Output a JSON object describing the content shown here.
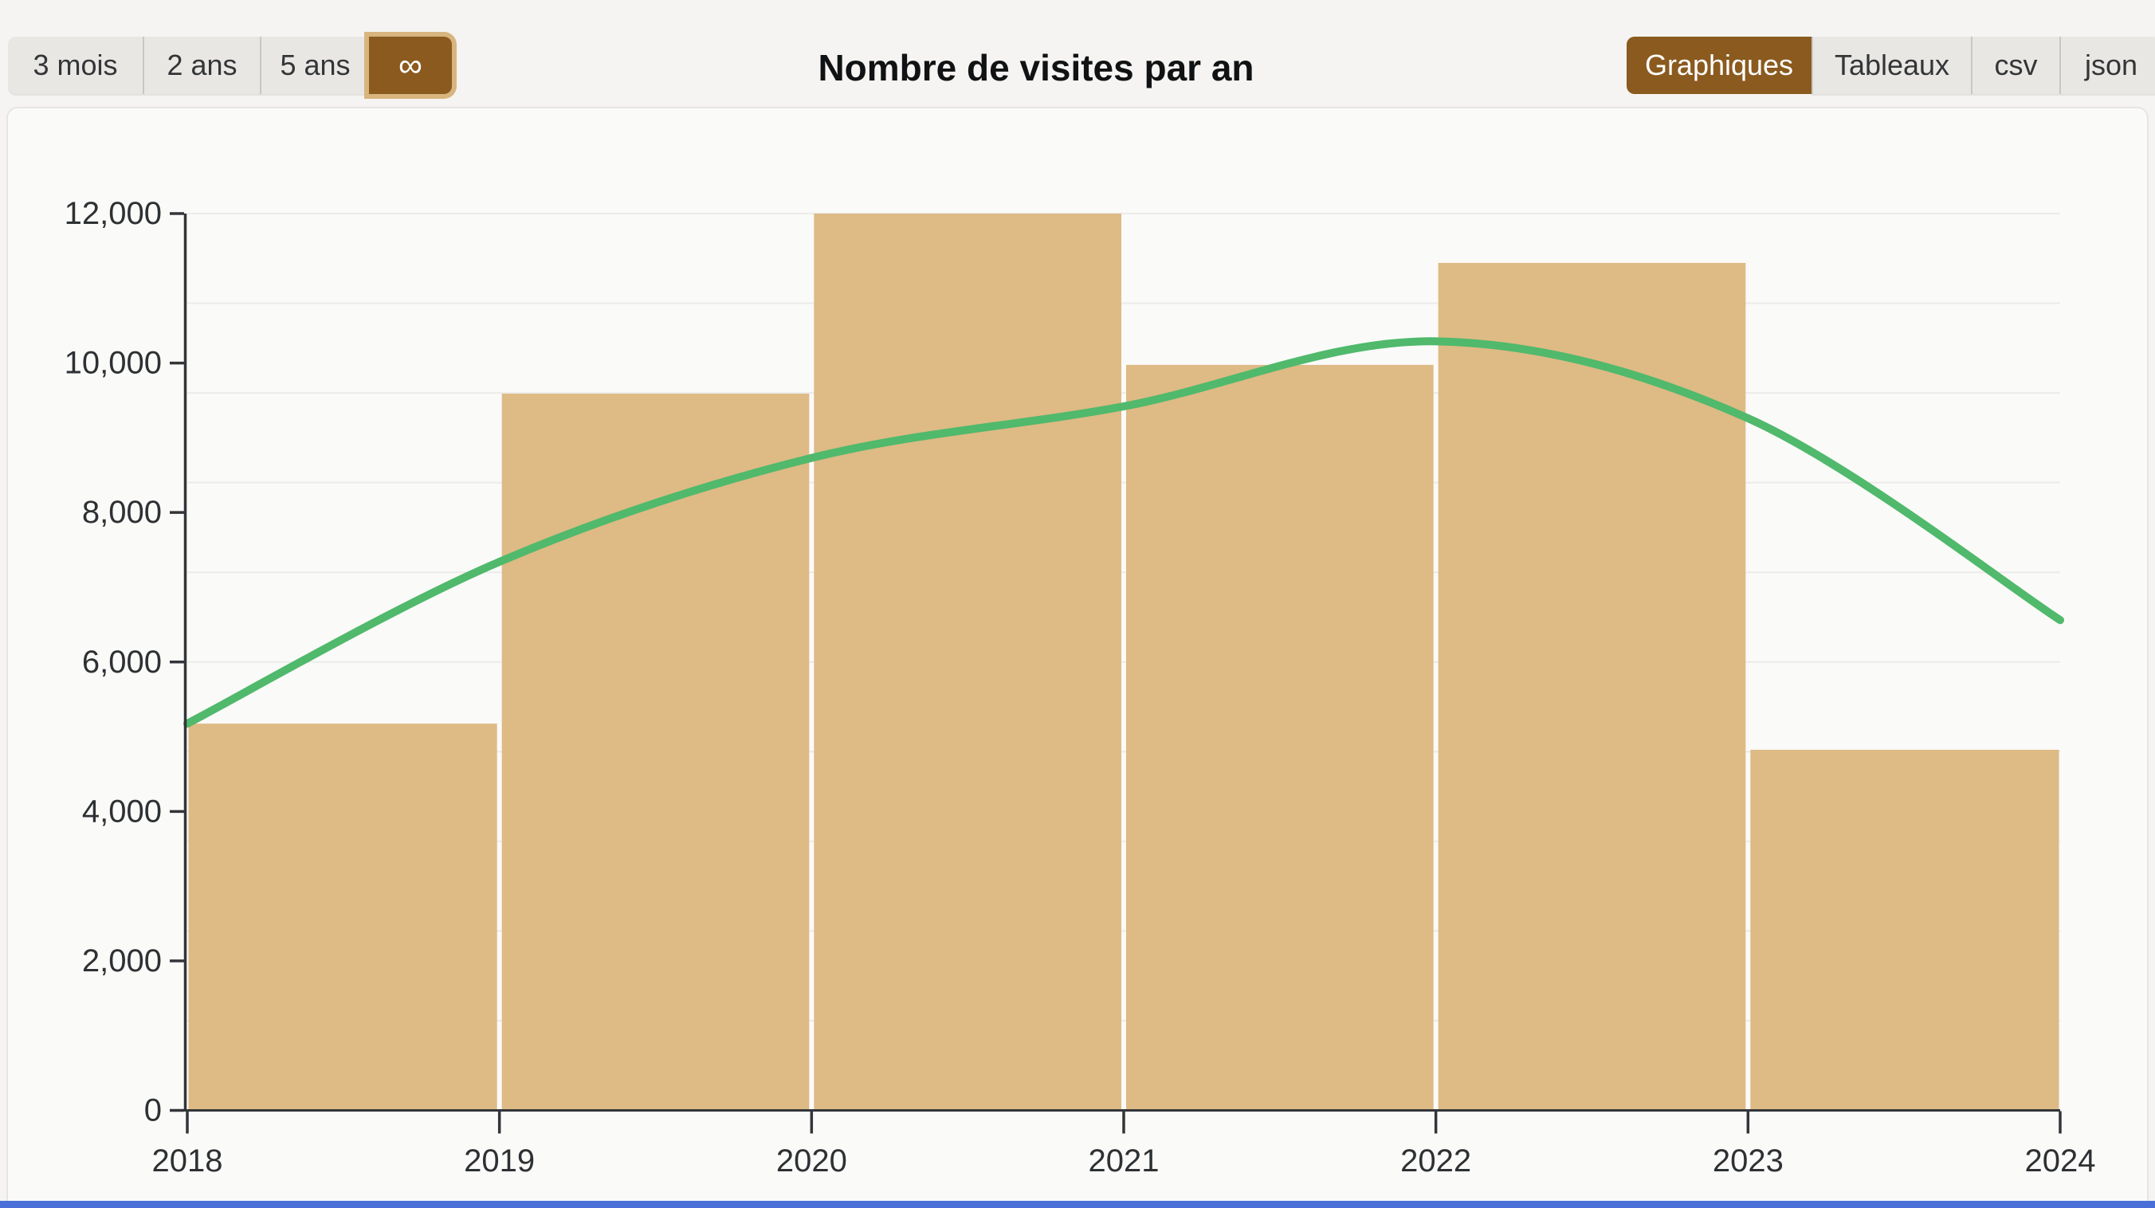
{
  "toolbar": {
    "range_buttons": [
      {
        "label": "3 mois",
        "selected": false
      },
      {
        "label": "2 ans",
        "selected": false
      },
      {
        "label": "5 ans",
        "selected": false
      },
      {
        "label": "∞",
        "selected": true
      }
    ],
    "title": "Nombre de visites par an",
    "view_buttons": [
      {
        "label": "Graphiques",
        "selected": true
      },
      {
        "label": "Tableaux",
        "selected": false
      },
      {
        "label": "csv",
        "selected": false
      },
      {
        "label": "json",
        "selected": false
      }
    ]
  },
  "colors": {
    "accent_brown": "#8A5A1F",
    "accent_ring": "#D8B57E",
    "bar_fill": "#DEBA85",
    "line_green": "#50B96C",
    "axis": "#323539",
    "grid": "#EBEBE9",
    "footer_blue": "#4A6FD8"
  },
  "chart_data": {
    "type": "bar",
    "subtype": "histogram-with-trend-line",
    "title": "Nombre de visites par an",
    "categories": [
      "2018",
      "2019",
      "2020",
      "2021",
      "2022",
      "2023"
    ],
    "values": [
      5175,
      9590,
      12000,
      9975,
      11340,
      4825
    ],
    "series": [
      {
        "name": "trend-line",
        "x": [
          2018,
          2019,
          2020,
          2021,
          2022,
          2023,
          2024
        ],
        "values": [
          5175,
          7340,
          8730,
          9420,
          10290,
          9260,
          6560
        ]
      }
    ],
    "xlabel": "",
    "ylabel": "",
    "xlim": [
      2018,
      2024
    ],
    "ylim": [
      0,
      12000
    ],
    "xticks": [
      "2018",
      "2019",
      "2020",
      "2021",
      "2022",
      "2023",
      "2024"
    ],
    "yticks": [
      {
        "value": 0,
        "label": "0"
      },
      {
        "value": 2000,
        "label": "2,000"
      },
      {
        "value": 4000,
        "label": "4,000"
      },
      {
        "value": 6000,
        "label": "6,000"
      },
      {
        "value": 8000,
        "label": "8,000"
      },
      {
        "value": 10000,
        "label": "10,000"
      },
      {
        "value": 12000,
        "label": "12,000"
      }
    ],
    "grid": {
      "horizontal": true,
      "step": 1200
    },
    "legend": "none",
    "bar_color": "#DEBA85",
    "line_color": "#50B96C"
  }
}
